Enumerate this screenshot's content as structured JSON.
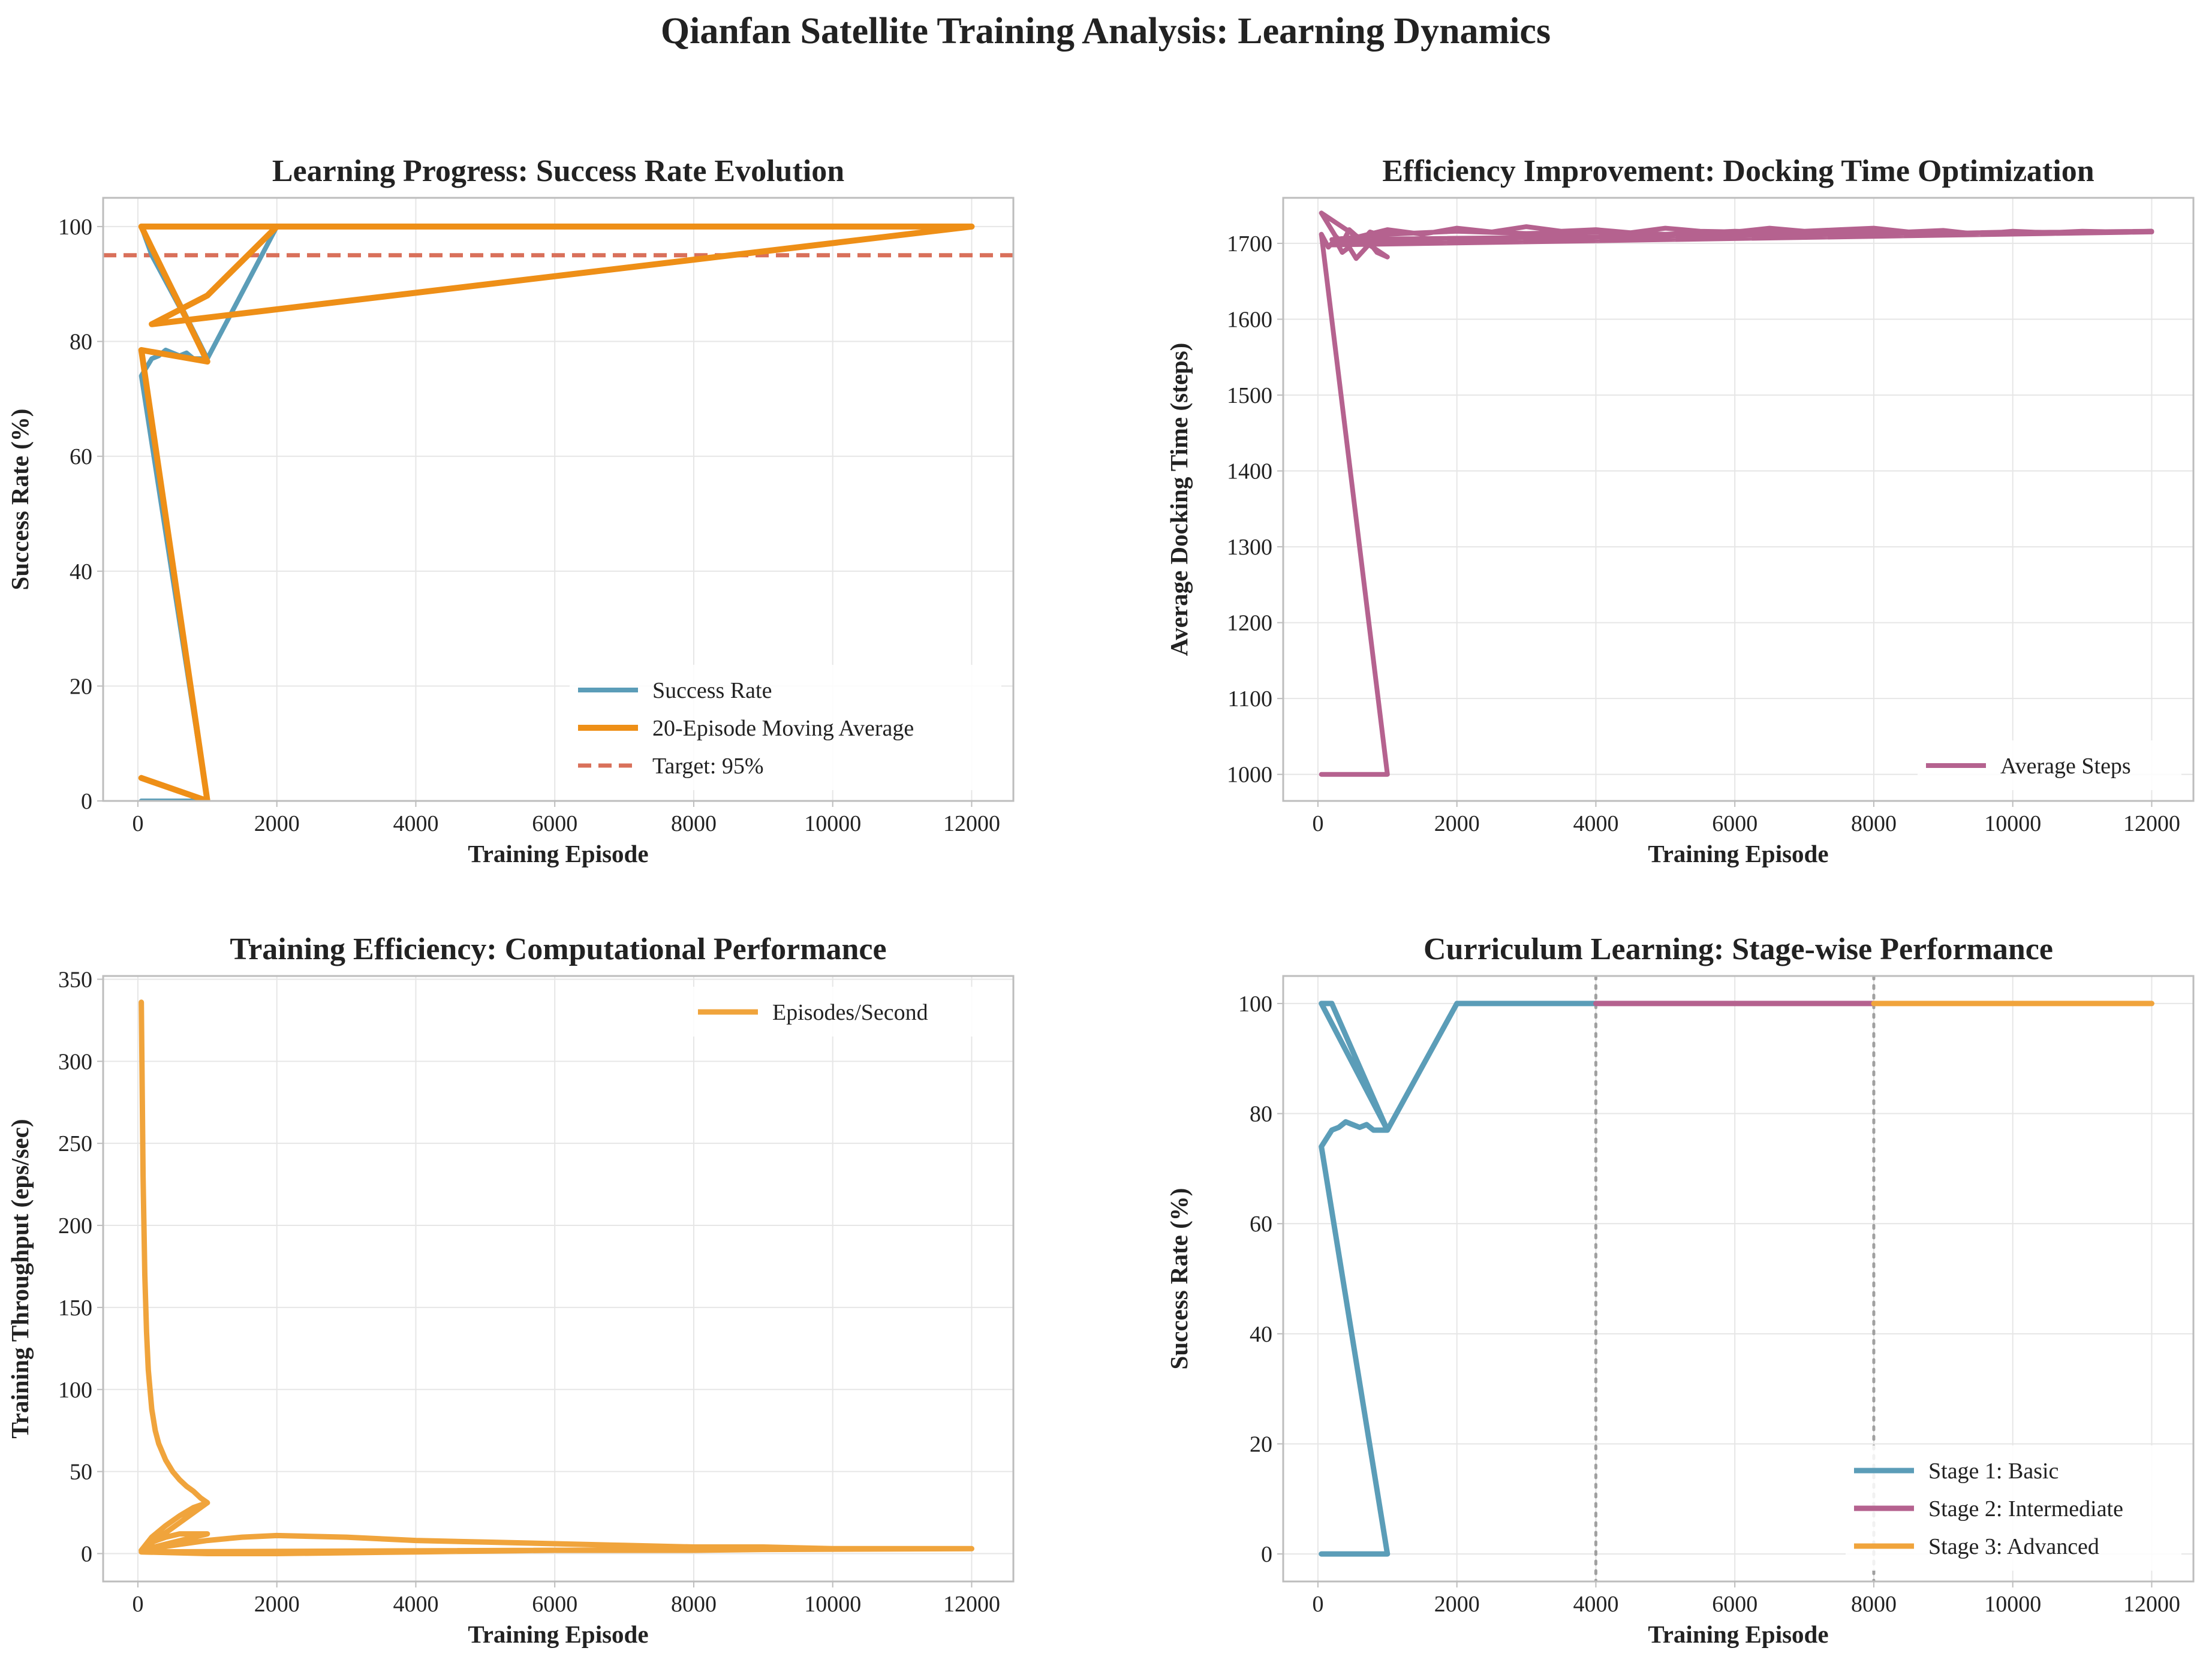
{
  "suptitle": "Qianfan Satellite Training Analysis: Learning Dynamics",
  "colors": {
    "blue": "#5b9db8",
    "orange": "#ee8f17",
    "red": "#d9705a",
    "magenta": "#b5628f",
    "light_orange": "#f0a43c",
    "gray": "#a0a0a0"
  },
  "chart_data": [
    {
      "type": "line",
      "title": "Learning Progress: Success Rate Evolution",
      "xlabel": "Training Episode",
      "ylabel": "Success Rate (%)",
      "xlim": [
        -500,
        12600
      ],
      "ylim": [
        0,
        105
      ],
      "xticks": [
        0,
        2000,
        4000,
        6000,
        8000,
        10000,
        12000
      ],
      "yticks": [
        0,
        20,
        40,
        60,
        80,
        100
      ],
      "grid": true,
      "legend_position": "lower right",
      "series": [
        {
          "name": "Success Rate",
          "color": "#5b9db8",
          "width": 8,
          "x": [
            50,
            1000,
            50,
            200,
            300,
            400,
            500,
            600,
            700,
            800,
            1000,
            50,
            200,
            1000,
            2000,
            4000,
            6000,
            8000,
            10000,
            12000
          ],
          "y": [
            0,
            0,
            74,
            77,
            77.5,
            78.5,
            78,
            77.5,
            78,
            77,
            77,
            100,
            95,
            77,
            100,
            100,
            100,
            100,
            100,
            100
          ]
        },
        {
          "name": "20-Episode Moving Average",
          "color": "#ee8f17",
          "width": 10,
          "x": [
            50,
            1000,
            50,
            1000,
            50,
            12000,
            200,
            1000,
            2000,
            4000,
            6000,
            8000,
            10000,
            12000
          ],
          "y": [
            4,
            0,
            78.5,
            76.5,
            100,
            100,
            83,
            88,
            100,
            100,
            100,
            100,
            100,
            100
          ]
        }
      ],
      "hlines": [
        {
          "name": "Target: 95%",
          "y": 95,
          "color": "#d9705a",
          "dash": "22,12",
          "width": 7
        }
      ]
    },
    {
      "type": "line",
      "title": "Efficiency Improvement: Docking Time Optimization",
      "xlabel": "Training Episode",
      "ylabel": "Average Docking Time (steps)",
      "xlim": [
        -500,
        12600
      ],
      "ylim": [
        965,
        1760
      ],
      "xticks": [
        0,
        2000,
        4000,
        6000,
        8000,
        10000,
        12000
      ],
      "yticks": [
        1000,
        1100,
        1200,
        1300,
        1400,
        1500,
        1600,
        1700
      ],
      "grid": true,
      "legend_position": "lower right",
      "series": [
        {
          "name": "Average Steps",
          "color": "#b5628f",
          "width": 8,
          "x": [
            50,
            1000,
            50,
            150,
            250,
            350,
            450,
            550,
            650,
            750,
            850,
            1000,
            50,
            150,
            250,
            350,
            450,
            550,
            650,
            750,
            850,
            1000,
            200,
            12000,
            200,
            1000,
            1500,
            2000,
            2500,
            3000,
            3500,
            4000,
            4500,
            5000,
            5500,
            6000,
            6500,
            7000,
            7500,
            8000,
            8500,
            9000,
            9500,
            10000,
            10500,
            11000,
            11500,
            12000,
            200,
            1000,
            2000,
            3000,
            4000,
            5000,
            6000,
            7000,
            8000,
            9000,
            10000,
            11000,
            12000
          ],
          "y": [
            1000,
            1000,
            1712,
            1695,
            1705,
            1688,
            1695,
            1680,
            1690,
            1700,
            1688,
            1682,
            1740,
            1725,
            1710,
            1700,
            1718,
            1710,
            1705,
            1715,
            1712,
            1718,
            1698,
            1715,
            1700,
            1718,
            1712,
            1720,
            1715,
            1722,
            1716,
            1718,
            1714,
            1720,
            1716,
            1715,
            1720,
            1716,
            1718,
            1720,
            1715,
            1717,
            1712,
            1716,
            1714,
            1716,
            1715,
            1716,
            1705,
            1712,
            1716,
            1713,
            1715,
            1712,
            1716,
            1714,
            1716,
            1713,
            1715,
            1714,
            1715
          ]
        }
      ]
    },
    {
      "type": "line",
      "title": "Training Efficiency: Computational Performance",
      "xlabel": "Training Episode",
      "ylabel": "Training Throughput (eps/sec)",
      "xlim": [
        -500,
        12600
      ],
      "ylim": [
        -17,
        352
      ],
      "xticks": [
        0,
        2000,
        4000,
        6000,
        8000,
        10000,
        12000
      ],
      "yticks": [
        0,
        50,
        100,
        150,
        200,
        250,
        300,
        350
      ],
      "grid": true,
      "legend_position": "upper right",
      "series": [
        {
          "name": "Episodes/Second",
          "color": "#f0a43c",
          "width": 9,
          "x": [
            50,
            75,
            100,
            125,
            150,
            200,
            250,
            300,
            400,
            500,
            600,
            700,
            800,
            900,
            1000,
            50,
            200,
            400,
            600,
            800,
            1000,
            50,
            200,
            400,
            600,
            800,
            1000,
            50,
            500,
            1000,
            1500,
            2000,
            3000,
            4000,
            5000,
            6000,
            7000,
            8000,
            9000,
            10000,
            11000,
            12000,
            50,
            1000,
            2000,
            4000,
            6000,
            8000,
            10000,
            12000
          ],
          "y": [
            336,
            230,
            170,
            135,
            112,
            88,
            75,
            67,
            57,
            50,
            45,
            41,
            38,
            34,
            31,
            2,
            10,
            17,
            23,
            28,
            31,
            2,
            7,
            10,
            12,
            12,
            12,
            2,
            5,
            8,
            10,
            11,
            10,
            8,
            7,
            6,
            5,
            4,
            4,
            3,
            3,
            3,
            1,
            0,
            0,
            1,
            2,
            2,
            3,
            3
          ]
        }
      ]
    },
    {
      "type": "line",
      "title": "Curriculum Learning: Stage-wise Performance",
      "xlabel": "Training Episode",
      "ylabel": "Success Rate (%)",
      "xlim": [
        -500,
        12600
      ],
      "ylim": [
        -5,
        105
      ],
      "xticks": [
        0,
        2000,
        4000,
        6000,
        8000,
        10000,
        12000
      ],
      "yticks": [
        0,
        20,
        40,
        60,
        80,
        100
      ],
      "grid": true,
      "legend_position": "lower right",
      "vlines": [
        4000,
        8000
      ],
      "series": [
        {
          "name": "Stage 1: Basic",
          "color": "#5b9db8",
          "width": 9,
          "x": [
            50,
            1000,
            50,
            200,
            300,
            400,
            500,
            600,
            700,
            800,
            1000,
            50,
            200,
            1000,
            2000,
            4000
          ],
          "y": [
            0,
            0,
            74,
            77,
            77.5,
            78.5,
            78,
            77.5,
            78,
            77,
            77,
            100,
            100,
            77,
            100,
            100
          ]
        },
        {
          "name": "Stage 2: Intermediate",
          "color": "#b5628f",
          "width": 9,
          "x": [
            4000,
            8000
          ],
          "y": [
            100,
            100
          ]
        },
        {
          "name": "Stage 3: Advanced",
          "color": "#f0a43c",
          "width": 9,
          "x": [
            8000,
            12000
          ],
          "y": [
            100,
            100
          ]
        }
      ]
    }
  ]
}
